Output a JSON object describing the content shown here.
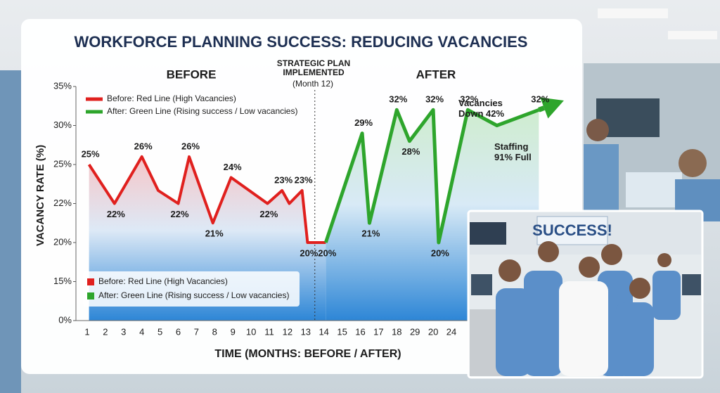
{
  "chart_data": {
    "type": "line",
    "title": "WORKFORCE PLANNING SUCCESS: REDUCING VACANCIES",
    "before_label": "BEFORE",
    "after_label": "AFTER",
    "divider_label": "STRATEGIC PLAN IMPLEMENTED",
    "divider_note": "(Month 12)",
    "ylabel": "VACANCY RATE (%)",
    "xlabel": "TIME (MONTHS: BEFORE / AFTER)",
    "annotations": [
      "Vacancies Down 42%",
      "Staffing 91% Full"
    ],
    "categories": [
      "1",
      "2",
      "3",
      "4",
      "5",
      "6",
      "7",
      "8",
      "9",
      "10",
      "11",
      "12",
      "13",
      "14",
      "15",
      "16",
      "17",
      "18",
      "29",
      "20",
      "24"
    ],
    "ylim": [
      0,
      35
    ],
    "yticks": [
      {
        "value": 0,
        "label": "0%"
      },
      {
        "value": 15,
        "label": "15%"
      },
      {
        "value": 20,
        "label": "20%"
      },
      {
        "value": 22,
        "label": "22%"
      },
      {
        "value": 25,
        "label": "25%"
      },
      {
        "value": 30,
        "label": "30%"
      },
      {
        "value": 35,
        "label": "35%"
      }
    ],
    "series": [
      {
        "name": "Before: Red Line (High Vacancies)",
        "color": "#e0201e",
        "x": [
          1.1,
          2.5,
          4,
          4.9,
          6,
          6.6,
          7.9,
          8.9,
          10.9,
          11.7,
          12.1,
          12.8,
          13.1,
          14.1
        ],
        "values": [
          25,
          22,
          26,
          23,
          22,
          26,
          21,
          24,
          22,
          23,
          22,
          23,
          20,
          20
        ],
        "value_labels": [
          "25%",
          "22%",
          "26%",
          null,
          "22%",
          "26%",
          "21%",
          "24%",
          "22%",
          "23%",
          null,
          "23%",
          "20%",
          null
        ]
      },
      {
        "name": "After: Green Line (Rising success / Low vacancies)",
        "color": "#2ea52c",
        "x": [
          14.1,
          16.1,
          16.5,
          18,
          18.7,
          20,
          20.3,
          21.9,
          23.5,
          25.8
        ],
        "values": [
          20,
          29,
          21,
          32,
          28,
          32,
          20,
          32,
          30,
          32
        ],
        "value_labels": [
          "20%",
          "29%",
          "21%",
          "32%",
          "28%",
          "32%",
          "20%",
          "32%",
          null,
          "32%"
        ]
      }
    ]
  },
  "photo": {
    "banner": "SUCCESS!"
  }
}
